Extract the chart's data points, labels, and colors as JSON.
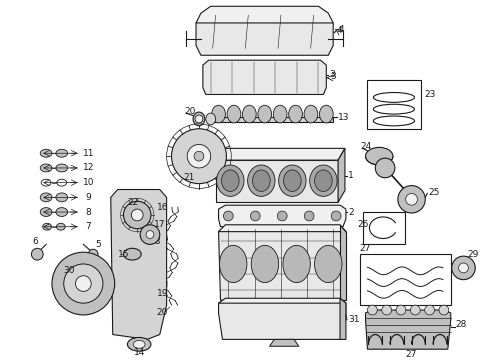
{
  "bg_color": "#ffffff",
  "lc": "#1a1a1a",
  "fig_w": 4.9,
  "fig_h": 3.6,
  "dpi": 100,
  "gray_fill": "#e8e8e8",
  "dark_gray": "#c0c0c0",
  "mid_gray": "#d4d4d4",
  "light_gray": "#f0f0f0"
}
